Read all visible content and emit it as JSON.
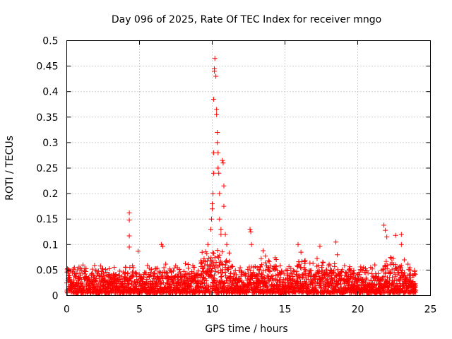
{
  "chart_data": {
    "type": "scatter",
    "title": "Day 096 of 2025, Rate Of TEC Index for receiver mngo",
    "xlabel": "GPS time / hours",
    "ylabel": "ROTI / TECUs",
    "xlim": [
      0,
      25
    ],
    "ylim": [
      0,
      0.5
    ],
    "xticks": [
      0,
      5,
      10,
      15,
      20,
      25
    ],
    "xtick_labels": [
      "0",
      "5",
      "10",
      "15",
      "20",
      "25"
    ],
    "yticks": [
      0,
      0.05,
      0.1,
      0.15,
      0.2,
      0.25,
      0.3,
      0.35,
      0.4,
      0.45,
      0.5
    ],
    "ytick_labels": [
      "0",
      "0.05",
      "0.1",
      "0.15",
      "0.2",
      "0.25",
      "0.3",
      "0.35",
      "0.4",
      "0.45",
      "0.5"
    ],
    "grid": true,
    "marker": "plus",
    "color": "#ff0000",
    "series": [
      {
        "name": "ROTI",
        "x_range": [
          0,
          24
        ],
        "baseline_band": [
          0.005,
          0.06
        ],
        "notable_points": [
          {
            "x": 4.3,
            "y": 0.162
          },
          {
            "x": 4.3,
            "y": 0.148
          },
          {
            "x": 4.3,
            "y": 0.117
          },
          {
            "x": 4.3,
            "y": 0.095
          },
          {
            "x": 4.9,
            "y": 0.087
          },
          {
            "x": 6.5,
            "y": 0.1
          },
          {
            "x": 6.6,
            "y": 0.097
          },
          {
            "x": 9.7,
            "y": 0.1
          },
          {
            "x": 9.9,
            "y": 0.13
          },
          {
            "x": 9.95,
            "y": 0.15
          },
          {
            "x": 10.0,
            "y": 0.17
          },
          {
            "x": 10.0,
            "y": 0.18
          },
          {
            "x": 10.05,
            "y": 0.2
          },
          {
            "x": 10.1,
            "y": 0.24
          },
          {
            "x": 10.1,
            "y": 0.28
          },
          {
            "x": 10.1,
            "y": 0.385
          },
          {
            "x": 10.15,
            "y": 0.44
          },
          {
            "x": 10.15,
            "y": 0.445
          },
          {
            "x": 10.18,
            "y": 0.465
          },
          {
            "x": 10.25,
            "y": 0.43
          },
          {
            "x": 10.3,
            "y": 0.365
          },
          {
            "x": 10.3,
            "y": 0.355
          },
          {
            "x": 10.35,
            "y": 0.32
          },
          {
            "x": 10.35,
            "y": 0.3
          },
          {
            "x": 10.4,
            "y": 0.28
          },
          {
            "x": 10.4,
            "y": 0.25
          },
          {
            "x": 10.45,
            "y": 0.24
          },
          {
            "x": 10.5,
            "y": 0.2
          },
          {
            "x": 10.5,
            "y": 0.15
          },
          {
            "x": 10.6,
            "y": 0.13
          },
          {
            "x": 10.6,
            "y": 0.12
          },
          {
            "x": 10.7,
            "y": 0.265
          },
          {
            "x": 10.75,
            "y": 0.26
          },
          {
            "x": 10.8,
            "y": 0.215
          },
          {
            "x": 10.8,
            "y": 0.175
          },
          {
            "x": 10.9,
            "y": 0.12
          },
          {
            "x": 11.0,
            "y": 0.1
          },
          {
            "x": 12.6,
            "y": 0.13
          },
          {
            "x": 12.65,
            "y": 0.125
          },
          {
            "x": 12.7,
            "y": 0.1
          },
          {
            "x": 13.5,
            "y": 0.088
          },
          {
            "x": 15.9,
            "y": 0.1
          },
          {
            "x": 16.1,
            "y": 0.085
          },
          {
            "x": 17.4,
            "y": 0.097
          },
          {
            "x": 18.5,
            "y": 0.105
          },
          {
            "x": 18.6,
            "y": 0.08
          },
          {
            "x": 21.8,
            "y": 0.138
          },
          {
            "x": 21.9,
            "y": 0.128
          },
          {
            "x": 22.0,
            "y": 0.115
          },
          {
            "x": 22.6,
            "y": 0.118
          },
          {
            "x": 23.0,
            "y": 0.12
          },
          {
            "x": 23.0,
            "y": 0.1
          },
          {
            "x": 23.2,
            "y": 0.07
          },
          {
            "x": 23.9,
            "y": 0.043
          }
        ]
      }
    ]
  }
}
